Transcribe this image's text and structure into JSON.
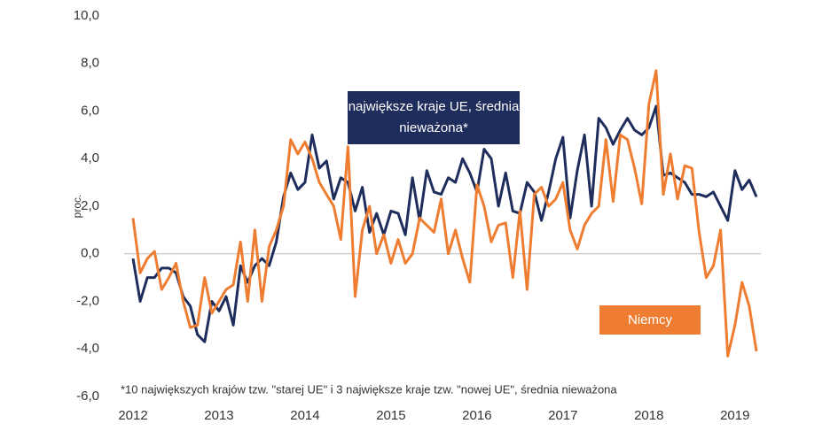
{
  "chart_data": {
    "type": "line",
    "y_label": "proc.",
    "note": "*10 największych krajów tzw. \"starej UE\" i 3 największe kraje tzw. \"nowej UE\", średnia nieważona",
    "categories": [
      "2012",
      null,
      null,
      null,
      null,
      null,
      null,
      null,
      null,
      null,
      null,
      null,
      "2013",
      null,
      null,
      null,
      null,
      null,
      null,
      null,
      null,
      null,
      null,
      null,
      "2014",
      null,
      null,
      null,
      null,
      null,
      null,
      null,
      null,
      null,
      null,
      null,
      "2015",
      null,
      null,
      null,
      null,
      null,
      null,
      null,
      null,
      null,
      null,
      null,
      "2016",
      null,
      null,
      null,
      null,
      null,
      null,
      null,
      null,
      null,
      null,
      null,
      "2017",
      null,
      null,
      null,
      null,
      null,
      null,
      null,
      null,
      null,
      null,
      null,
      "2018",
      null,
      null,
      null,
      null,
      null,
      null,
      null,
      null,
      null,
      null,
      null,
      "2019",
      null,
      null,
      null
    ],
    "series": [
      {
        "name": "największe kraje UE, średnia nieważona*",
        "color": "#1f2d5c",
        "values": [
          -0.2,
          -2.0,
          -1.0,
          -1.0,
          -0.6,
          -0.6,
          -0.8,
          -1.8,
          -2.2,
          -3.4,
          -3.7,
          -2.0,
          -2.4,
          -1.8,
          -3.0,
          -0.5,
          -1.2,
          -0.5,
          -0.2,
          -0.5,
          0.5,
          2.4,
          3.4,
          2.7,
          3.0,
          5.0,
          3.6,
          3.9,
          2.3,
          3.2,
          3.0,
          1.8,
          2.8,
          0.9,
          1.7,
          0.8,
          1.8,
          1.7,
          0.8,
          3.2,
          1.4,
          3.5,
          2.6,
          2.5,
          3.2,
          3.0,
          4.0,
          3.4,
          2.6,
          4.4,
          4.0,
          2.0,
          3.4,
          1.8,
          1.7,
          3.0,
          2.6,
          1.4,
          2.6,
          4.0,
          4.9,
          1.5,
          3.5,
          5.0,
          2.0,
          5.7,
          5.3,
          4.6,
          5.2,
          5.7,
          5.2,
          5.0,
          5.3,
          6.2,
          3.3,
          3.4,
          3.2,
          3.0,
          2.5,
          2.5,
          2.4,
          2.6,
          2.0,
          1.4,
          3.5,
          2.7,
          3.1,
          2.4
        ]
      },
      {
        "name": "Niemcy",
        "color": "#ee7d31",
        "values": [
          1.5,
          -0.8,
          -0.2,
          0.1,
          -1.5,
          -1.0,
          -0.4,
          -2.0,
          -3.1,
          -3.0,
          -1.0,
          -2.5,
          -2.0,
          -1.5,
          -1.3,
          0.5,
          -2.0,
          1.0,
          -2.0,
          0.3,
          1.0,
          2.0,
          4.8,
          4.2,
          4.7,
          4.0,
          3.0,
          2.5,
          2.0,
          0.6,
          4.5,
          -1.8,
          1.0,
          2.0,
          0.0,
          0.8,
          -0.4,
          0.6,
          -0.4,
          0.0,
          1.5,
          1.2,
          0.9,
          2.3,
          0.0,
          1.0,
          -0.2,
          -1.2,
          2.9,
          2.0,
          0.5,
          1.2,
          1.3,
          -1.0,
          1.8,
          -1.5,
          2.5,
          2.8,
          2.0,
          2.3,
          3.0,
          1.0,
          0.2,
          1.2,
          1.7,
          2.0,
          4.8,
          2.2,
          5.0,
          4.8,
          3.6,
          2.1,
          6.3,
          7.7,
          2.5,
          4.2,
          2.3,
          3.7,
          3.6,
          0.9,
          -1.0,
          -0.5,
          1.0,
          -4.3,
          -3.0,
          -1.2,
          -2.2,
          -4.1
        ]
      }
    ],
    "ylim": [
      -6,
      10
    ],
    "yticks": [
      {
        "value": 10,
        "label": "10,0"
      },
      {
        "value": 8,
        "label": "8,0"
      },
      {
        "value": 6,
        "label": "6,0"
      },
      {
        "value": 4,
        "label": "4,0"
      },
      {
        "value": 2,
        "label": "2,0"
      },
      {
        "value": 0,
        "label": "0,0"
      },
      {
        "value": -2,
        "label": "-2,0"
      },
      {
        "value": -4,
        "label": "-4,0"
      },
      {
        "value": -6,
        "label": "-6,0"
      }
    ],
    "grid": false
  }
}
